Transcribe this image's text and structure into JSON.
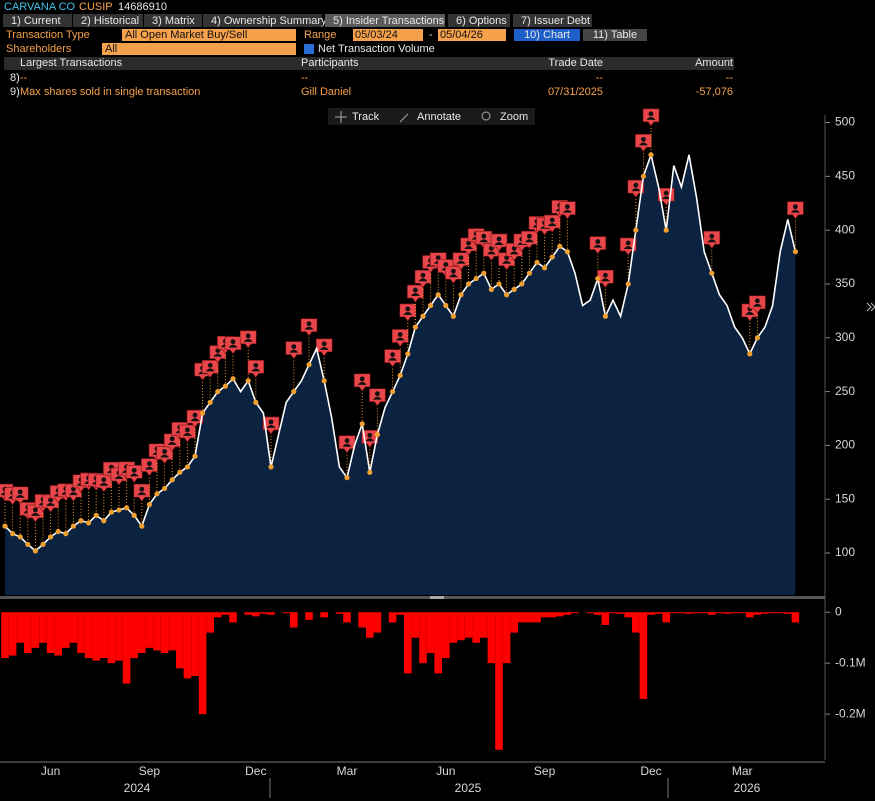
{
  "header": {
    "company": "CARVANA CO",
    "cusip_label": "CUSIP",
    "cusip": "14686910"
  },
  "tabs": [
    "1) Current",
    "2) Historical",
    "3) Matrix",
    "4) Ownership Summary",
    "5) Insider Transactions",
    "6) Options",
    "7) Issuer Debt"
  ],
  "controls": {
    "transaction_type_label": "Transaction Type",
    "transaction_type": "All Open Market Buy/Sell",
    "range_label": "Range",
    "range_start": "05/03/24",
    "range_sep": "-",
    "range_end": "05/04/26",
    "chart_button": "10) Chart",
    "table_button": "11) Table",
    "shareholders_label": "Shareholders",
    "shareholders": "All",
    "net_volume_label": "Net Transaction Volume"
  },
  "table": {
    "columns": [
      "Largest Transactions",
      "Participants",
      "Trade Date",
      "Amount"
    ],
    "rows": [
      [
        "8)",
        "--",
        "--",
        "--",
        "--"
      ],
      [
        "9)",
        "Max shares sold in single transaction",
        "Gill Daniel",
        "07/31/2025",
        "-57,076"
      ]
    ]
  },
  "toolbar": [
    "Track",
    "Annotate",
    "Zoom"
  ],
  "chart_data": [
    {
      "type": "area",
      "color": "#ffffff",
      "fill": "#0b2340",
      "marker_color": "#e8464a",
      "dot_color": "#f0a030",
      "values": [
        125,
        118,
        115,
        108,
        102,
        108,
        115,
        120,
        118,
        125,
        130,
        128,
        135,
        130,
        138,
        140,
        142,
        135,
        125,
        145,
        155,
        160,
        168,
        175,
        180,
        190,
        230,
        240,
        250,
        255,
        262,
        250,
        260,
        240,
        230,
        180,
        210,
        240,
        250,
        260,
        275,
        290,
        260,
        225,
        180,
        170,
        200,
        220,
        175,
        210,
        235,
        250,
        265,
        285,
        310,
        320,
        330,
        340,
        330,
        320,
        340,
        350,
        355,
        360,
        345,
        350,
        340,
        345,
        350,
        360,
        370,
        365,
        375,
        385,
        380,
        360,
        330,
        335,
        355,
        320,
        335,
        320,
        350,
        400,
        450,
        470,
        440,
        400,
        460,
        440,
        470,
        430,
        380,
        360,
        340,
        330,
        310,
        300,
        285,
        300,
        310,
        330,
        380,
        410,
        380
      ],
      "ylim": [
        61,
        507
      ],
      "yticks": [
        100,
        150,
        200,
        250,
        300,
        350,
        400,
        450,
        500
      ]
    },
    {
      "type": "bar",
      "color": "#ff0000",
      "categories": [
        null,
        null,
        null,
        null,
        null,
        null,
        "Jun",
        null,
        null,
        null,
        null,
        null,
        null,
        null,
        null,
        null,
        null,
        null,
        null,
        "Sep",
        null,
        null,
        null,
        null,
        null,
        null,
        null,
        null,
        null,
        null,
        null,
        null,
        null,
        "Dec",
        null,
        null,
        null,
        null,
        null,
        null,
        null,
        null,
        null,
        null,
        null,
        "Mar",
        null,
        null,
        null,
        null,
        null,
        null,
        null,
        null,
        null,
        null,
        null,
        null,
        "Jun",
        null,
        null,
        null,
        null,
        null,
        null,
        null,
        null,
        null,
        null,
        null,
        null,
        "Sep",
        null,
        null,
        null,
        null,
        null,
        null,
        null,
        null,
        null,
        null,
        null,
        null,
        null,
        "Dec",
        null,
        null,
        null,
        null,
        null,
        null,
        null,
        null,
        null,
        null,
        null,
        "Mar",
        null,
        null,
        null,
        null,
        null,
        null,
        null
      ],
      "values": [
        -90000,
        -85000,
        -60000,
        -80000,
        -70000,
        -60000,
        -80000,
        -85000,
        -70000,
        -60000,
        -80000,
        -90000,
        -95000,
        -90000,
        -100000,
        -95000,
        -140000,
        -90000,
        -80000,
        -70000,
        -75000,
        -80000,
        -75000,
        -110000,
        -130000,
        -125000,
        -200000,
        -40000,
        -10000,
        -5000,
        -20000,
        0,
        -5000,
        -8000,
        -3000,
        -5000,
        0,
        -2000,
        -30000,
        0,
        -15000,
        0,
        -10000,
        0,
        -3000,
        -20000,
        0,
        -30000,
        -50000,
        -40000,
        0,
        -20000,
        -5000,
        -120000,
        -50000,
        -100000,
        -80000,
        -120000,
        -90000,
        -60000,
        -55000,
        -50000,
        -60000,
        -50000,
        -100000,
        -270000,
        -100000,
        -40000,
        -20000,
        -20000,
        -20000,
        -10000,
        -10000,
        -8000,
        -5000,
        -2000,
        0,
        -2000,
        -5000,
        -25000,
        -2000,
        -3000,
        -10000,
        -40000,
        -170000,
        -5000,
        -3000,
        -20000,
        -2000,
        -2000,
        -3000,
        -2000,
        -2000,
        -5000,
        -2000,
        -3000,
        -2000,
        -2000,
        -10000,
        -5000,
        -3000,
        -2000,
        -2000,
        -3000,
        -20000
      ],
      "ylim": [
        -290000,
        24000
      ],
      "yticks": [
        0,
        {
          "value": -100000,
          "label": "-0.1M"
        },
        {
          "value": -200000,
          "label": "-0.2M"
        }
      ],
      "x_groups": [
        "2024",
        "2025",
        "2026"
      ]
    }
  ]
}
